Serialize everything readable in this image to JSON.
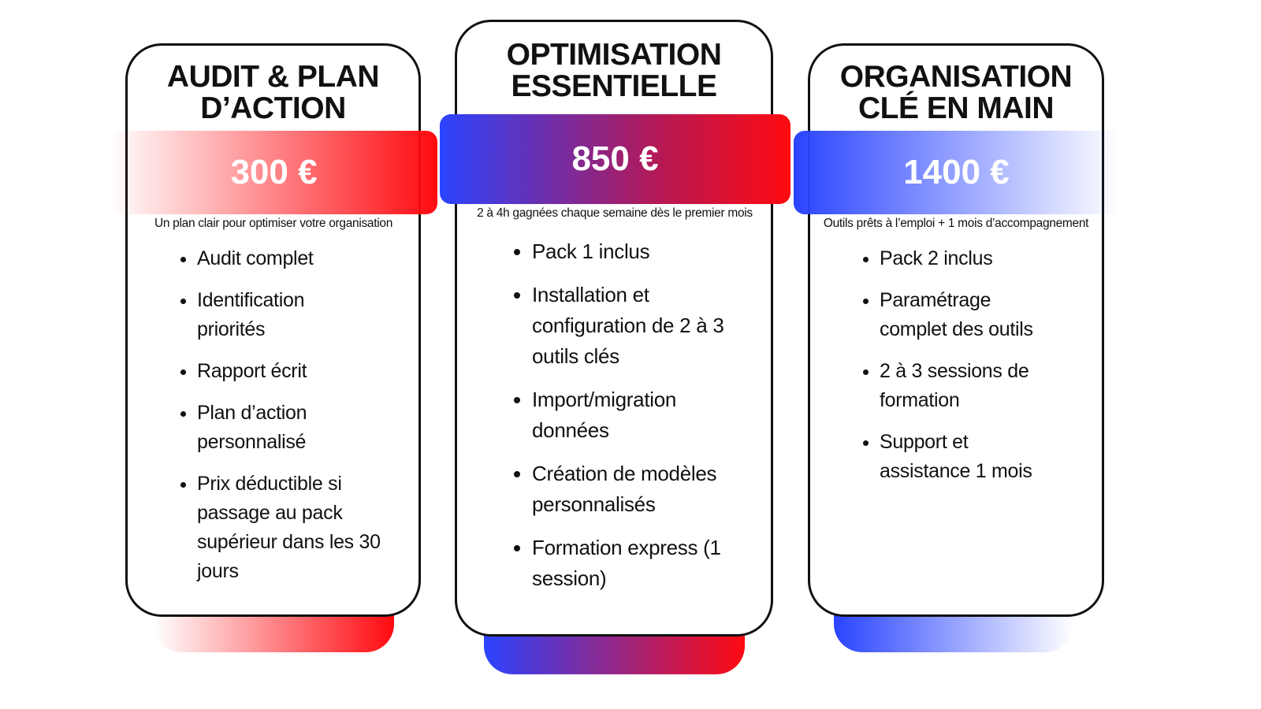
{
  "cards": [
    {
      "title_line1": "AUDIT & PLAN",
      "title_line2": "D’ACTION",
      "price": "300 €",
      "subtitle": "Un plan clair pour optimiser votre organisation",
      "features": [
        "Audit complet",
        "Identification priorités",
        "Rapport écrit",
        "Plan d’action personnalisé",
        "Prix déductible si passage au pack supérieur dans les 30 jours"
      ]
    },
    {
      "title_line1": "OPTIMISATION",
      "title_line2": "ESSENTIELLE",
      "price": "850 €",
      "subtitle": "2 à 4h gagnées chaque semaine dès le premier mois",
      "features": [
        "Pack 1 inclus",
        "Installation et configuration de 2 à 3 outils clés",
        "Import/migration données",
        "Création de modèles personnalisés",
        "Formation express (1 session)"
      ]
    },
    {
      "title_line1": "ORGANISATION",
      "title_line2": "CLÉ EN MAIN",
      "price": "1400 €",
      "subtitle": "Outils prêts à l’emploi + 1 mois d’accompagnement",
      "features": [
        "Pack 2 inclus",
        "Paramétrage complet des outils",
        "2 à 3 sessions de formation",
        "Support et assistance 1 mois"
      ]
    }
  ],
  "colors": {
    "red": "#ff0a10",
    "blue": "#2a44ff",
    "border": "#111111"
  }
}
